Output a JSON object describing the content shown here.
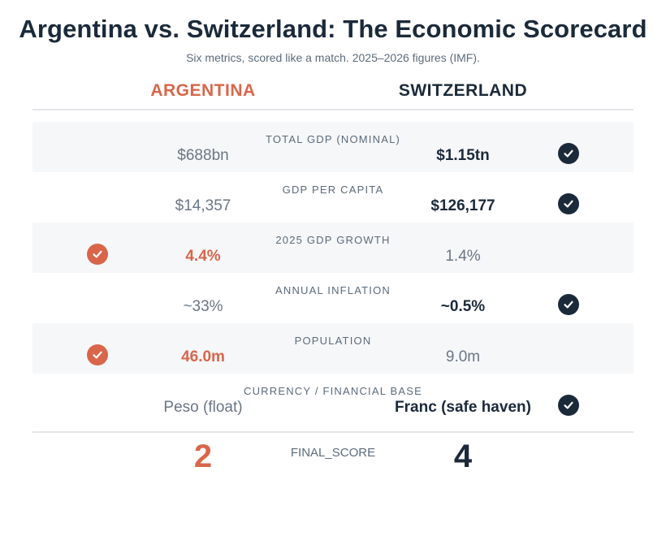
{
  "header": {
    "title": "Argentina vs. Switzerland: The Economic Scorecard",
    "subtitle": "Six metrics, scored like a match. 2025–2026 figures (IMF).",
    "left_team": "ARGENTINA",
    "right_team": "SWITZERLAND"
  },
  "colors": {
    "argentina": "#d9664a",
    "switzerland": "#1b2a3a",
    "row_shade": "#f6f7f9",
    "muted_text": "#6b7684"
  },
  "chart_data": {
    "type": "table",
    "columns": [
      "ARGENTINA",
      "SWITZERLAND"
    ],
    "rows": [
      {
        "metric": "TOTAL GDP (NOMINAL)",
        "argentina": "$688bn",
        "switzerland": "$1.15tn",
        "winner": "switzerland"
      },
      {
        "metric": "GDP PER CAPITA",
        "argentina": "$14,357",
        "switzerland": "$126,177",
        "winner": "switzerland"
      },
      {
        "metric": "2025 GDP GROWTH",
        "argentina": "4.4%",
        "switzerland": "1.4%",
        "winner": "argentina"
      },
      {
        "metric": "ANNUAL INFLATION",
        "argentina": "~33%",
        "switzerland": "~0.5%",
        "winner": "switzerland"
      },
      {
        "metric": "POPULATION",
        "argentina": "46.0m",
        "switzerland": "9.0m",
        "winner": "argentina"
      },
      {
        "metric": "CURRENCY / FINANCIAL BASE",
        "argentina": "Peso (float)",
        "switzerland": "Franc (safe haven)",
        "winner": "switzerland"
      }
    ],
    "final": {
      "label": "FINAL_SCORE",
      "argentina": "2",
      "switzerland": "4"
    }
  }
}
